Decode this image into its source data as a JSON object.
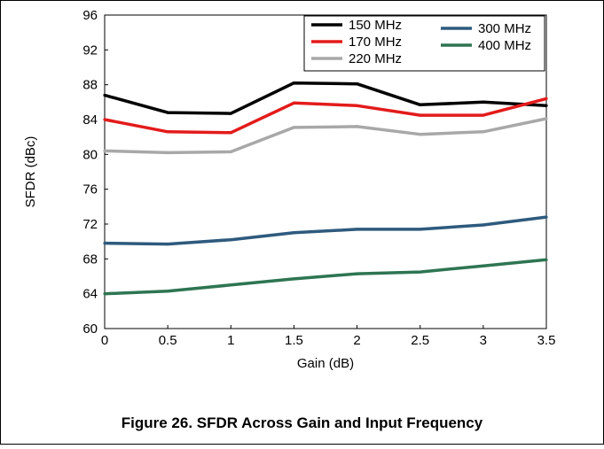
{
  "figure_caption": "Figure 26. SFDR Across Gain and Input Frequency",
  "colors": {
    "series_150": "#000000",
    "series_170": "#e31b1b",
    "series_220": "#a8a8a8",
    "series_300": "#2e5a7e",
    "series_400": "#2e7552",
    "axis": "#000000"
  },
  "chart_data": {
    "type": "line",
    "title": "",
    "xlabel": "Gain (dB)",
    "ylabel": "SFDR (dBc)",
    "xlim": [
      0,
      3.5
    ],
    "ylim": [
      60,
      96
    ],
    "x_ticks": [
      "0",
      "0.5",
      "1",
      "1.5",
      "2",
      "2.5",
      "3",
      "3.5"
    ],
    "y_ticks": [
      "60",
      "64",
      "68",
      "72",
      "76",
      "80",
      "84",
      "88",
      "92",
      "96"
    ],
    "grid": false,
    "legend_position": "top-right",
    "x": [
      0,
      0.5,
      1,
      1.5,
      2,
      2.5,
      3,
      3.5
    ],
    "series": [
      {
        "name": "150 MHz",
        "color": "#000000",
        "values": [
          86.8,
          84.8,
          84.7,
          88.2,
          88.1,
          85.7,
          86.0,
          85.6
        ]
      },
      {
        "name": "170 MHz",
        "color": "#e31b1b",
        "values": [
          84.0,
          82.6,
          82.5,
          85.9,
          85.6,
          84.5,
          84.5,
          86.4
        ]
      },
      {
        "name": "220 MHz",
        "color": "#a8a8a8",
        "values": [
          80.4,
          80.2,
          80.3,
          83.1,
          83.2,
          82.3,
          82.6,
          84.1
        ]
      },
      {
        "name": "300 MHz",
        "color": "#2e5a7e",
        "values": [
          69.8,
          69.7,
          70.2,
          71.0,
          71.4,
          71.4,
          71.9,
          72.8
        ]
      },
      {
        "name": "400 MHz",
        "color": "#2e7552",
        "values": [
          64.0,
          64.3,
          65.0,
          65.7,
          66.3,
          66.5,
          67.2,
          67.9
        ]
      }
    ]
  }
}
